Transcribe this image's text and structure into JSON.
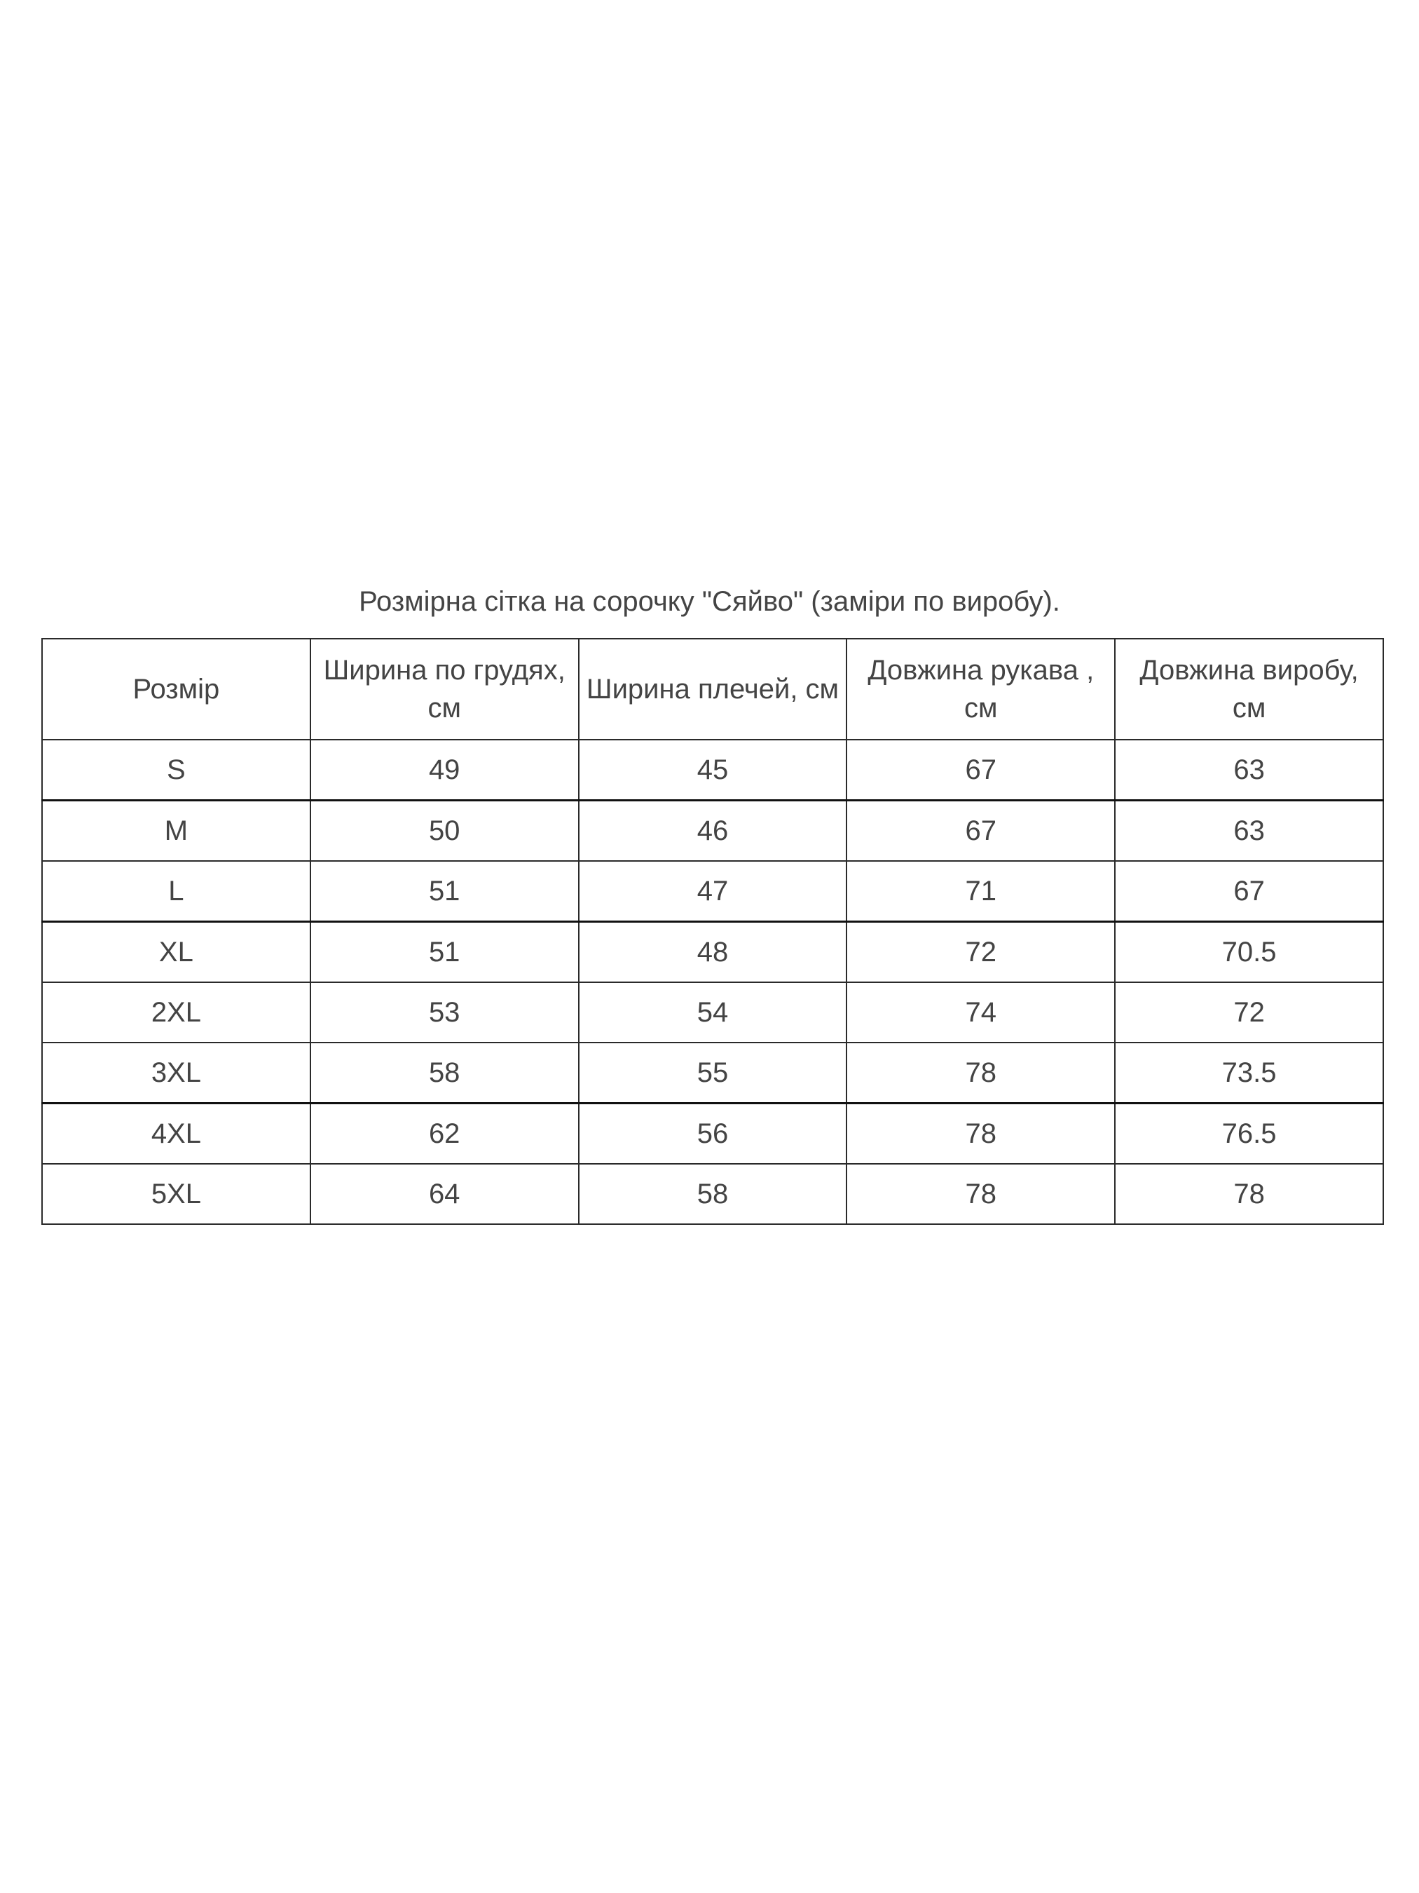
{
  "title": "Розмірна сітка на сорочку \"Сяйво\" (заміри по виробу).",
  "table": {
    "headers": [
      "Розмір",
      "Ширина по грудях, см",
      "Ширина плечей, см",
      "Довжина рукава , см",
      "Довжина виробу, см"
    ],
    "rows": [
      [
        "S",
        "49",
        "45",
        "67",
        "63"
      ],
      [
        "M",
        "50",
        "46",
        "67",
        "63"
      ],
      [
        "L",
        "51",
        "47",
        "71",
        "67"
      ],
      [
        "XL",
        "51",
        "48",
        "72",
        "70.5"
      ],
      [
        "2XL",
        "53",
        "54",
        "74",
        "72"
      ],
      [
        "3XL",
        "58",
        "55",
        "78",
        "73.5"
      ],
      [
        "4XL",
        "62",
        "56",
        "78",
        "76.5"
      ],
      [
        "5XL",
        "64",
        "58",
        "78",
        "78"
      ]
    ]
  }
}
